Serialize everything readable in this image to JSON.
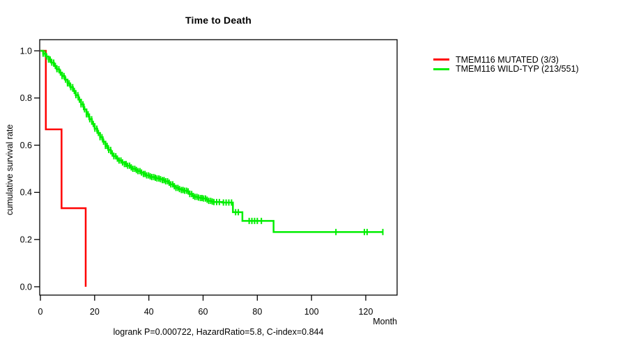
{
  "chart": {
    "title": "Time to Death",
    "y_label": "cumulative survival rate",
    "x_unit": "Month",
    "stats_line": "logrank P=0.000722, HazardRatio=5.8, C-index=0.844"
  },
  "chart_data": {
    "type": "line",
    "subtype": "kaplan-meier-step-curves",
    "title": "Time to Death",
    "xlabel": "Month",
    "ylabel": "cumulative survival rate",
    "xlim": [
      0,
      131.5
    ],
    "ylim": [
      0,
      1
    ],
    "grid": false,
    "legend_position": "right-outside",
    "x_ticks": [
      0,
      20,
      40,
      60,
      80,
      100,
      120
    ],
    "x_tick_labels": [
      "0",
      "20",
      "40",
      "60",
      "80",
      "100",
      "120"
    ],
    "y_ticks": [
      0.0,
      0.2,
      0.4,
      0.6,
      0.8,
      1.0
    ],
    "y_tick_labels": [
      "0.0",
      "0.2",
      "0.4",
      "0.6",
      "0.8",
      "1.0"
    ],
    "axis_color": "#000000",
    "stats_line": "logrank P=0.000722, HazardRatio=5.8, C-index=0.844",
    "series": [
      {
        "name": "TMEM116 MUTATED (3/3)",
        "color": "#ff0000",
        "end_month": 16.7,
        "points": [
          [
            0,
            1.0
          ],
          [
            2,
            0.667
          ],
          [
            7.8,
            0.333
          ],
          [
            16.7,
            0.0
          ]
        ],
        "censor_months": []
      },
      {
        "name": "TMEM116 WILD-TYP (213/551)",
        "color": "#00ee00",
        "end_month": 126.5,
        "points": [
          [
            0,
            1.0
          ],
          [
            1,
            0.988
          ],
          [
            2,
            0.976
          ],
          [
            3,
            0.963
          ],
          [
            4,
            0.95
          ],
          [
            5,
            0.936
          ],
          [
            6,
            0.922
          ],
          [
            7,
            0.908
          ],
          [
            8,
            0.893
          ],
          [
            9,
            0.878
          ],
          [
            10,
            0.862
          ],
          [
            11,
            0.846
          ],
          [
            12,
            0.83
          ],
          [
            13,
            0.812
          ],
          [
            14,
            0.793
          ],
          [
            15,
            0.773
          ],
          [
            16,
            0.752
          ],
          [
            17,
            0.731
          ],
          [
            18,
            0.71
          ],
          [
            19,
            0.69
          ],
          [
            20,
            0.67
          ],
          [
            21,
            0.652
          ],
          [
            22,
            0.634
          ],
          [
            23,
            0.615
          ],
          [
            24,
            0.597
          ],
          [
            25,
            0.58
          ],
          [
            26,
            0.565
          ],
          [
            27,
            0.553
          ],
          [
            28,
            0.543
          ],
          [
            29,
            0.535
          ],
          [
            30,
            0.527
          ],
          [
            31,
            0.52
          ],
          [
            32,
            0.513
          ],
          [
            33,
            0.506
          ],
          [
            34,
            0.5
          ],
          [
            35,
            0.495
          ],
          [
            36,
            0.49
          ],
          [
            37,
            0.484
          ],
          [
            38,
            0.478
          ],
          [
            39,
            0.472
          ],
          [
            40,
            0.468
          ],
          [
            41,
            0.465
          ],
          [
            42,
            0.462
          ],
          [
            43,
            0.459
          ],
          [
            44,
            0.456
          ],
          [
            45,
            0.452
          ],
          [
            46,
            0.447
          ],
          [
            47,
            0.441
          ],
          [
            48,
            0.434
          ],
          [
            49,
            0.426
          ],
          [
            50,
            0.419
          ],
          [
            51,
            0.414
          ],
          [
            52,
            0.41
          ],
          [
            53,
            0.407
          ],
          [
            54,
            0.404
          ],
          [
            55,
            0.393
          ],
          [
            56,
            0.385
          ],
          [
            57,
            0.381
          ],
          [
            58,
            0.378
          ],
          [
            59,
            0.376
          ],
          [
            60,
            0.374
          ],
          [
            61,
            0.369
          ],
          [
            62,
            0.364
          ],
          [
            63,
            0.361
          ],
          [
            64,
            0.359
          ],
          [
            67,
            0.357
          ],
          [
            71,
            0.316
          ],
          [
            74.5,
            0.279
          ],
          [
            86,
            0.232
          ]
        ],
        "censor_months": [
          1,
          1.7,
          2.3,
          3,
          3.6,
          4.2,
          4.9,
          5.5,
          6.1,
          6.8,
          7.4,
          8,
          8.7,
          9.3,
          10,
          10.6,
          11.2,
          11.9,
          12.5,
          13.1,
          13.8,
          14.4,
          15,
          15.7,
          16.3,
          17,
          17.6,
          18.2,
          18.9,
          19.5,
          20.1,
          20.8,
          21.4,
          22,
          22.7,
          23.3,
          24,
          24.6,
          25.2,
          25.9,
          26.5,
          27.1,
          27.8,
          28.4,
          29,
          29.7,
          30.3,
          31,
          31.6,
          32.2,
          32.9,
          33.5,
          34.1,
          34.8,
          35.4,
          36,
          36.7,
          37.3,
          38,
          38.6,
          39.2,
          39.9,
          40.5,
          41.1,
          41.8,
          42.4,
          43,
          43.7,
          44.3,
          45,
          45.6,
          46.2,
          46.9,
          47.5,
          48.1,
          48.8,
          49.4,
          50,
          50.7,
          51.3,
          52,
          52.6,
          53.2,
          53.9,
          54.5,
          55.1,
          55.8,
          56.4,
          57,
          57.7,
          58.3,
          59,
          59.6,
          60.2,
          60.9,
          61.5,
          62.1,
          62.8,
          63.4,
          64,
          65,
          66,
          67.5,
          68.5,
          69.5,
          70.5,
          72,
          73,
          77,
          78,
          79,
          80,
          81.5,
          109,
          119.5,
          120.5,
          126.3
        ]
      }
    ]
  }
}
